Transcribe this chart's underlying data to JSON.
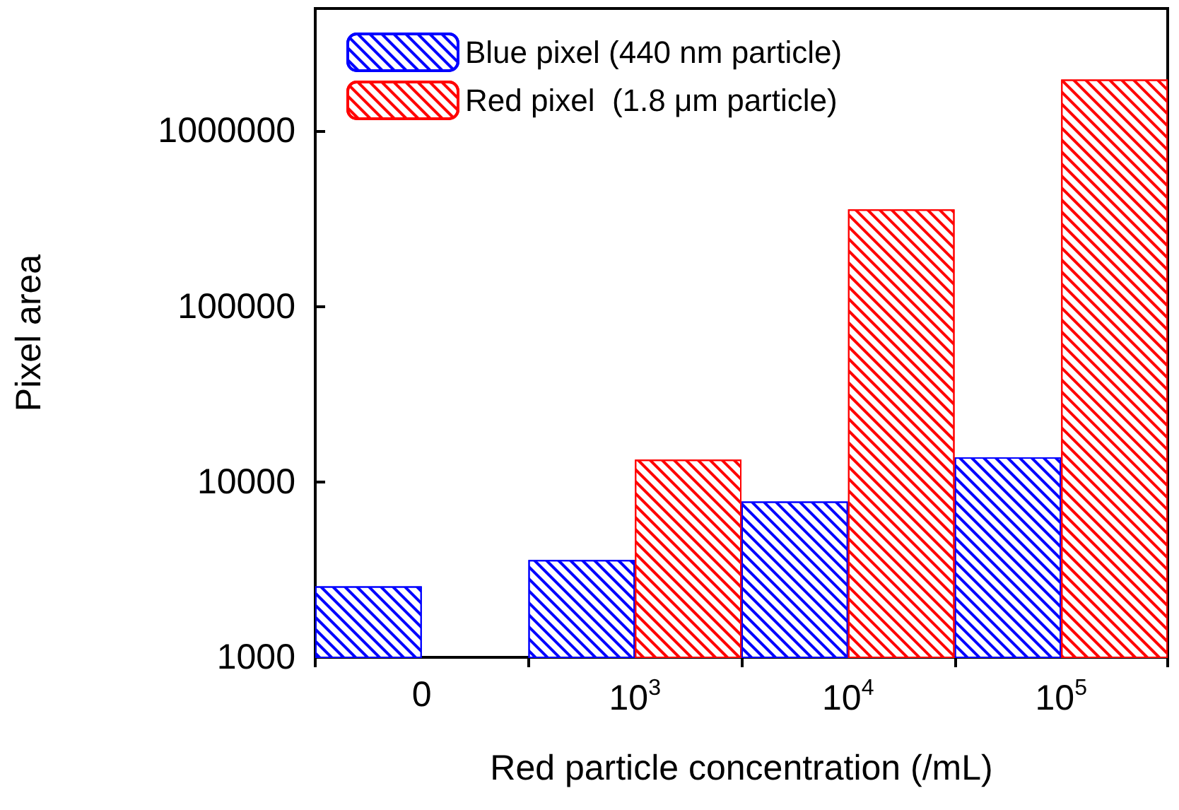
{
  "chart_data": {
    "type": "bar",
    "xlabel": "Red particle concentration (/mL)",
    "ylabel": "Pixel area",
    "categories": [
      "0",
      "10$^{3}$",
      "10$^{4}$",
      "10$^{5}$"
    ],
    "series": [
      {
        "name": "Blue pixel (440 nm particle)",
        "color": "#0000ff",
        "values": [
          2540,
          3590,
          7730,
          13800
        ]
      },
      {
        "name": "Red pixel  (1.8 μm particle)",
        "color": "#ff0000",
        "values": [
          null,
          13400,
          358000,
          1970000
        ]
      }
    ],
    "log": "y",
    "ylim": [
      1000,
      5000000
    ],
    "yticks": [
      1000,
      10000,
      100000,
      1000000
    ],
    "grid": false,
    "legend": "top left"
  }
}
